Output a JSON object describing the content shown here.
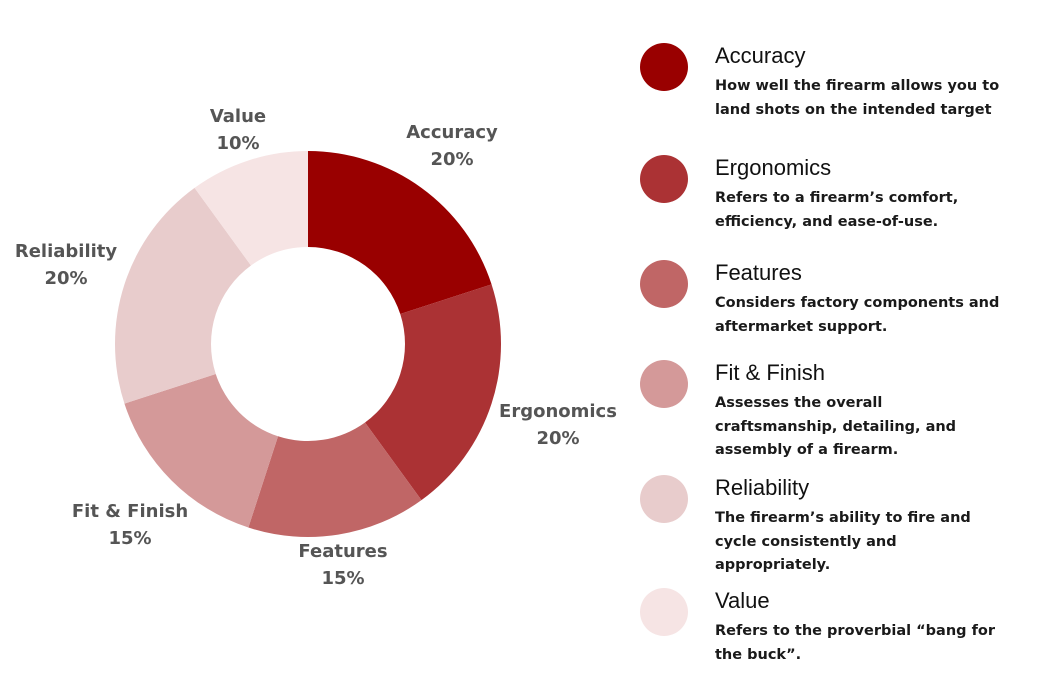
{
  "chart_data": {
    "type": "pie",
    "donut": true,
    "categories": [
      "Accuracy",
      "Ergonomics",
      "Features",
      "Fit & Finish",
      "Reliability",
      "Value"
    ],
    "values": [
      20,
      20,
      15,
      15,
      20,
      10
    ],
    "value_labels": [
      "20%",
      "20%",
      "15%",
      "15%",
      "20%",
      "10%"
    ],
    "colors": [
      "#990000",
      "#ab3234",
      "#c06666",
      "#d49999",
      "#e8cccc",
      "#f6e4e4"
    ],
    "start": "top",
    "direction": "clockwise",
    "legend_placement": "right"
  },
  "legend": [
    {
      "title": "Accuracy",
      "description": "How well the firearm allows you to land shots on the intended target"
    },
    {
      "title": "Ergonomics",
      "description": "Refers to a firearm’s comfort, efficiency, and ease-of-use."
    },
    {
      "title": "Features",
      "description": "Considers factory components and aftermarket support."
    },
    {
      "title": "Fit & Finish",
      "description": "Assesses the overall craftsmanship, detailing, and assembly of a firearm."
    },
    {
      "title": "Reliability",
      "description": "The firearm’s ability to fire and cycle consistently and appropriately."
    },
    {
      "title": "Value",
      "description": "Refers to the proverbial “bang for the buck”."
    }
  ]
}
